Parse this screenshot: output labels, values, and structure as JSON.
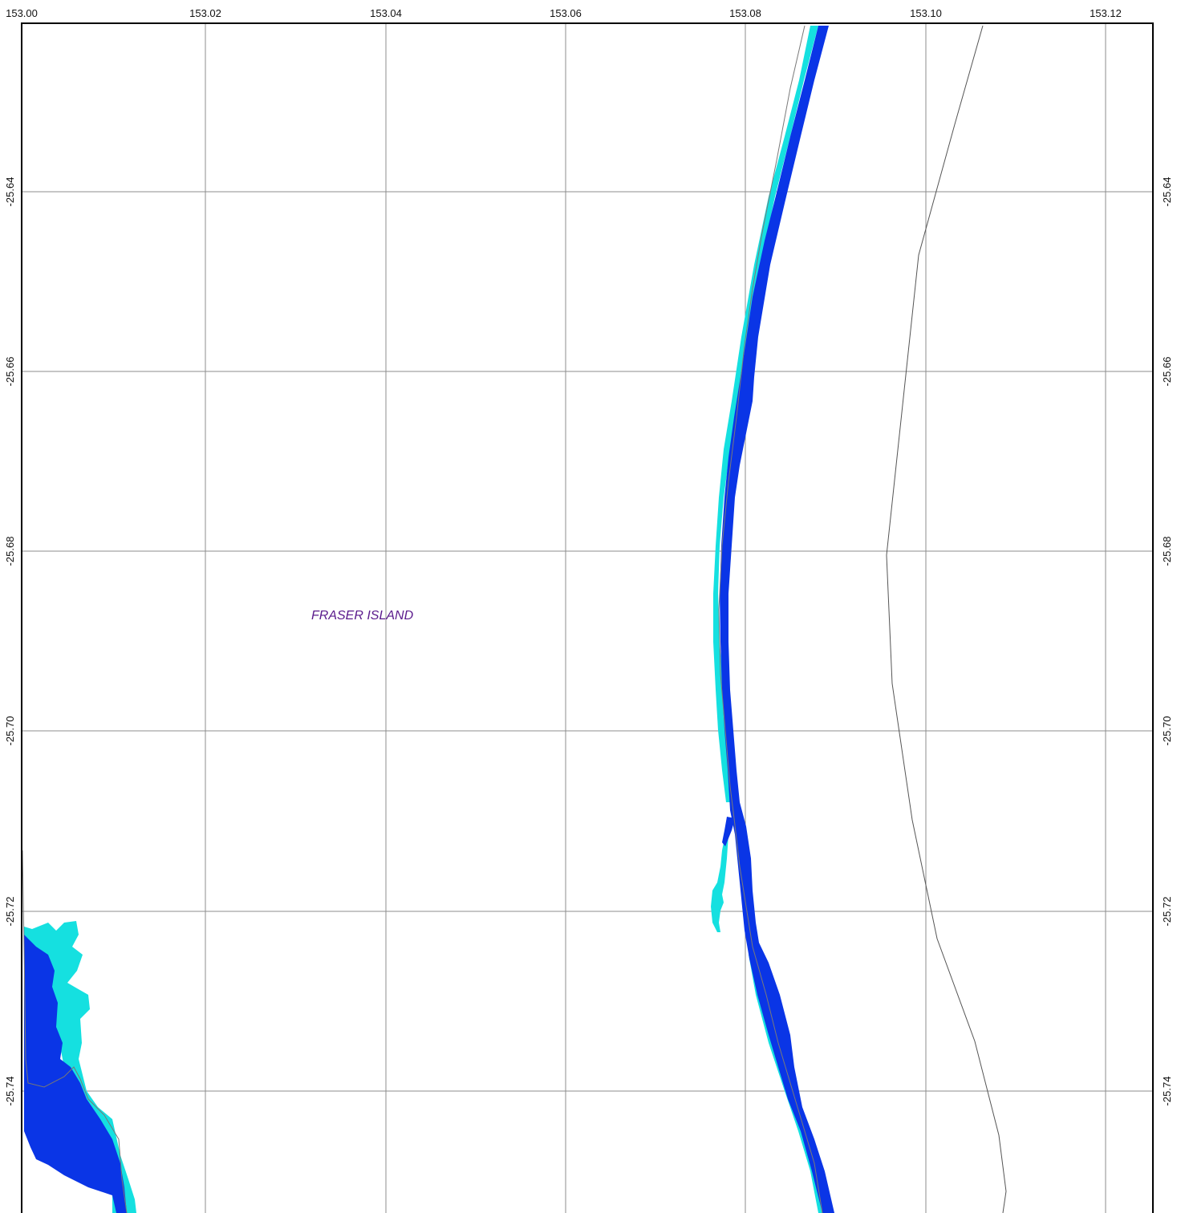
{
  "map": {
    "place_label": "FRASER ISLAND",
    "longitude_ticks": [
      "153.00",
      "153.02",
      "153.04",
      "153.06",
      "153.08",
      "153.10",
      "153.12"
    ],
    "latitude_ticks": [
      "-25.64",
      "-25.66",
      "-25.68",
      "-25.70",
      "-25.72",
      "-25.74"
    ],
    "colors": {
      "deep_water": "#0a35e6",
      "shallow_water": "#15e0e0",
      "grid": "#8c8c8c",
      "frame": "#000000",
      "boundary_line": "#555555",
      "place_label": "#5a1a8c"
    },
    "layers": [
      "deep-water",
      "shallow-water",
      "boundary-line",
      "graticule"
    ]
  }
}
